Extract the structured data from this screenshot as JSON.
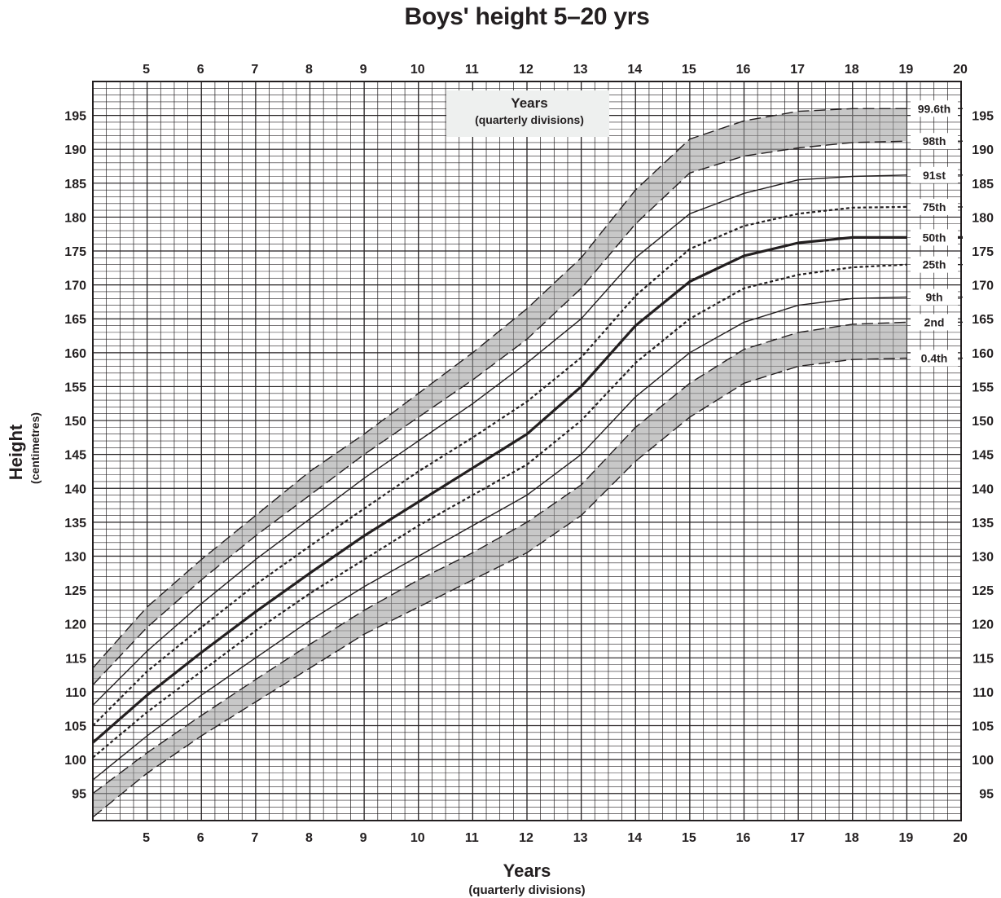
{
  "title": "Boys' height 5–20 yrs",
  "chart_data": {
    "type": "line",
    "title": "Boys' height 5–20 yrs",
    "xlabel": "Years",
    "xlabel_sub": "(quarterly divisions)",
    "ylabel": "Height",
    "ylabel_sub": "(centimetres)",
    "inset_box": {
      "title": "Years",
      "subtitle": "(quarterly divisions)"
    },
    "xlim": [
      4,
      20
    ],
    "ylim": [
      91,
      200
    ],
    "x_ticks": [
      5,
      6,
      7,
      8,
      9,
      10,
      11,
      12,
      13,
      14,
      15,
      16,
      17,
      18,
      19,
      20
    ],
    "y_ticks": [
      95,
      100,
      105,
      110,
      115,
      120,
      125,
      130,
      135,
      140,
      145,
      150,
      155,
      160,
      165,
      170,
      175,
      180,
      185,
      190,
      195
    ],
    "grid": "quarterly years × 1 cm",
    "shaded_bands": [
      "98th–99.6th",
      "0.4th–2nd"
    ],
    "series": [
      {
        "name": "99.6th",
        "style": "long-dash",
        "x": [
          4,
          5,
          6,
          7,
          8,
          9,
          10,
          11,
          12,
          13,
          14,
          15,
          16,
          17,
          18,
          19
        ],
        "y": [
          113.5,
          122.5,
          129.5,
          136,
          142.5,
          148,
          154,
          160,
          166.5,
          174,
          184,
          191.5,
          194.2,
          195.6,
          196,
          196
        ]
      },
      {
        "name": "98th",
        "style": "long-dash",
        "x": [
          4,
          5,
          6,
          7,
          8,
          9,
          10,
          11,
          12,
          13,
          14,
          15,
          16,
          17,
          18,
          19
        ],
        "y": [
          111,
          119.5,
          126.5,
          133,
          139,
          145,
          150.5,
          156,
          162,
          169.5,
          179,
          186.5,
          189,
          190.2,
          191,
          191.2
        ]
      },
      {
        "name": "91st",
        "style": "solid-thin",
        "x": [
          4,
          5,
          6,
          7,
          8,
          9,
          10,
          11,
          12,
          13,
          14,
          15,
          16,
          17,
          18,
          19
        ],
        "y": [
          108,
          116,
          123,
          129.5,
          135.5,
          141.5,
          147,
          152.5,
          158.5,
          165,
          174,
          180.5,
          183.5,
          185.5,
          186,
          186.2
        ]
      },
      {
        "name": "75th",
        "style": "short-dash",
        "x": [
          4,
          5,
          6,
          7,
          8,
          9,
          10,
          11,
          12,
          13,
          14,
          15,
          16,
          17,
          18,
          19
        ],
        "y": [
          105,
          113,
          119.5,
          125.8,
          131.5,
          137,
          142.5,
          147.5,
          152.8,
          159.3,
          168.4,
          175.3,
          178.7,
          180.5,
          181.4,
          181.5
        ]
      },
      {
        "name": "50th",
        "style": "solid-thick",
        "x": [
          4,
          5,
          6,
          7,
          8,
          9,
          10,
          11,
          12,
          13,
          14,
          15,
          16,
          17,
          18,
          19
        ],
        "y": [
          102.5,
          109.5,
          115.8,
          121.8,
          127.5,
          133,
          138,
          143,
          148,
          155,
          164,
          170.5,
          174.3,
          176.2,
          177,
          177
        ]
      },
      {
        "name": "25th",
        "style": "short-dash",
        "x": [
          4,
          5,
          6,
          7,
          8,
          9,
          10,
          11,
          12,
          13,
          14,
          15,
          16,
          17,
          18,
          19
        ],
        "y": [
          100.3,
          107,
          113,
          119,
          124.5,
          129.5,
          134.5,
          139,
          143.5,
          150,
          158.5,
          165,
          169.5,
          171.5,
          172.6,
          173
        ]
      },
      {
        "name": "9th",
        "style": "solid-thin",
        "x": [
          4,
          5,
          6,
          7,
          8,
          9,
          10,
          11,
          12,
          13,
          14,
          15,
          16,
          17,
          18,
          19
        ],
        "y": [
          97,
          103.5,
          109.5,
          115,
          120.5,
          125.5,
          130,
          134.5,
          139,
          145,
          153.5,
          160,
          164.5,
          167,
          168,
          168.2
        ]
      },
      {
        "name": "2nd",
        "style": "long-dash",
        "x": [
          4,
          5,
          6,
          7,
          8,
          9,
          10,
          11,
          12,
          13,
          14,
          15,
          16,
          17,
          18,
          19
        ],
        "y": [
          95,
          101,
          106.5,
          111.8,
          117,
          122,
          126.5,
          130.5,
          135,
          140.5,
          149,
          155.5,
          160.5,
          163,
          164.2,
          164.5
        ]
      },
      {
        "name": "0.4th",
        "style": "long-dash",
        "x": [
          4,
          5,
          6,
          7,
          8,
          9,
          10,
          11,
          12,
          13,
          14,
          15,
          16,
          17,
          18,
          19
        ],
        "y": [
          91.5,
          98,
          103.5,
          108.5,
          113.5,
          118.5,
          122.5,
          126.5,
          130.5,
          136,
          144,
          150.5,
          155.5,
          158,
          159,
          159.2
        ]
      }
    ]
  }
}
